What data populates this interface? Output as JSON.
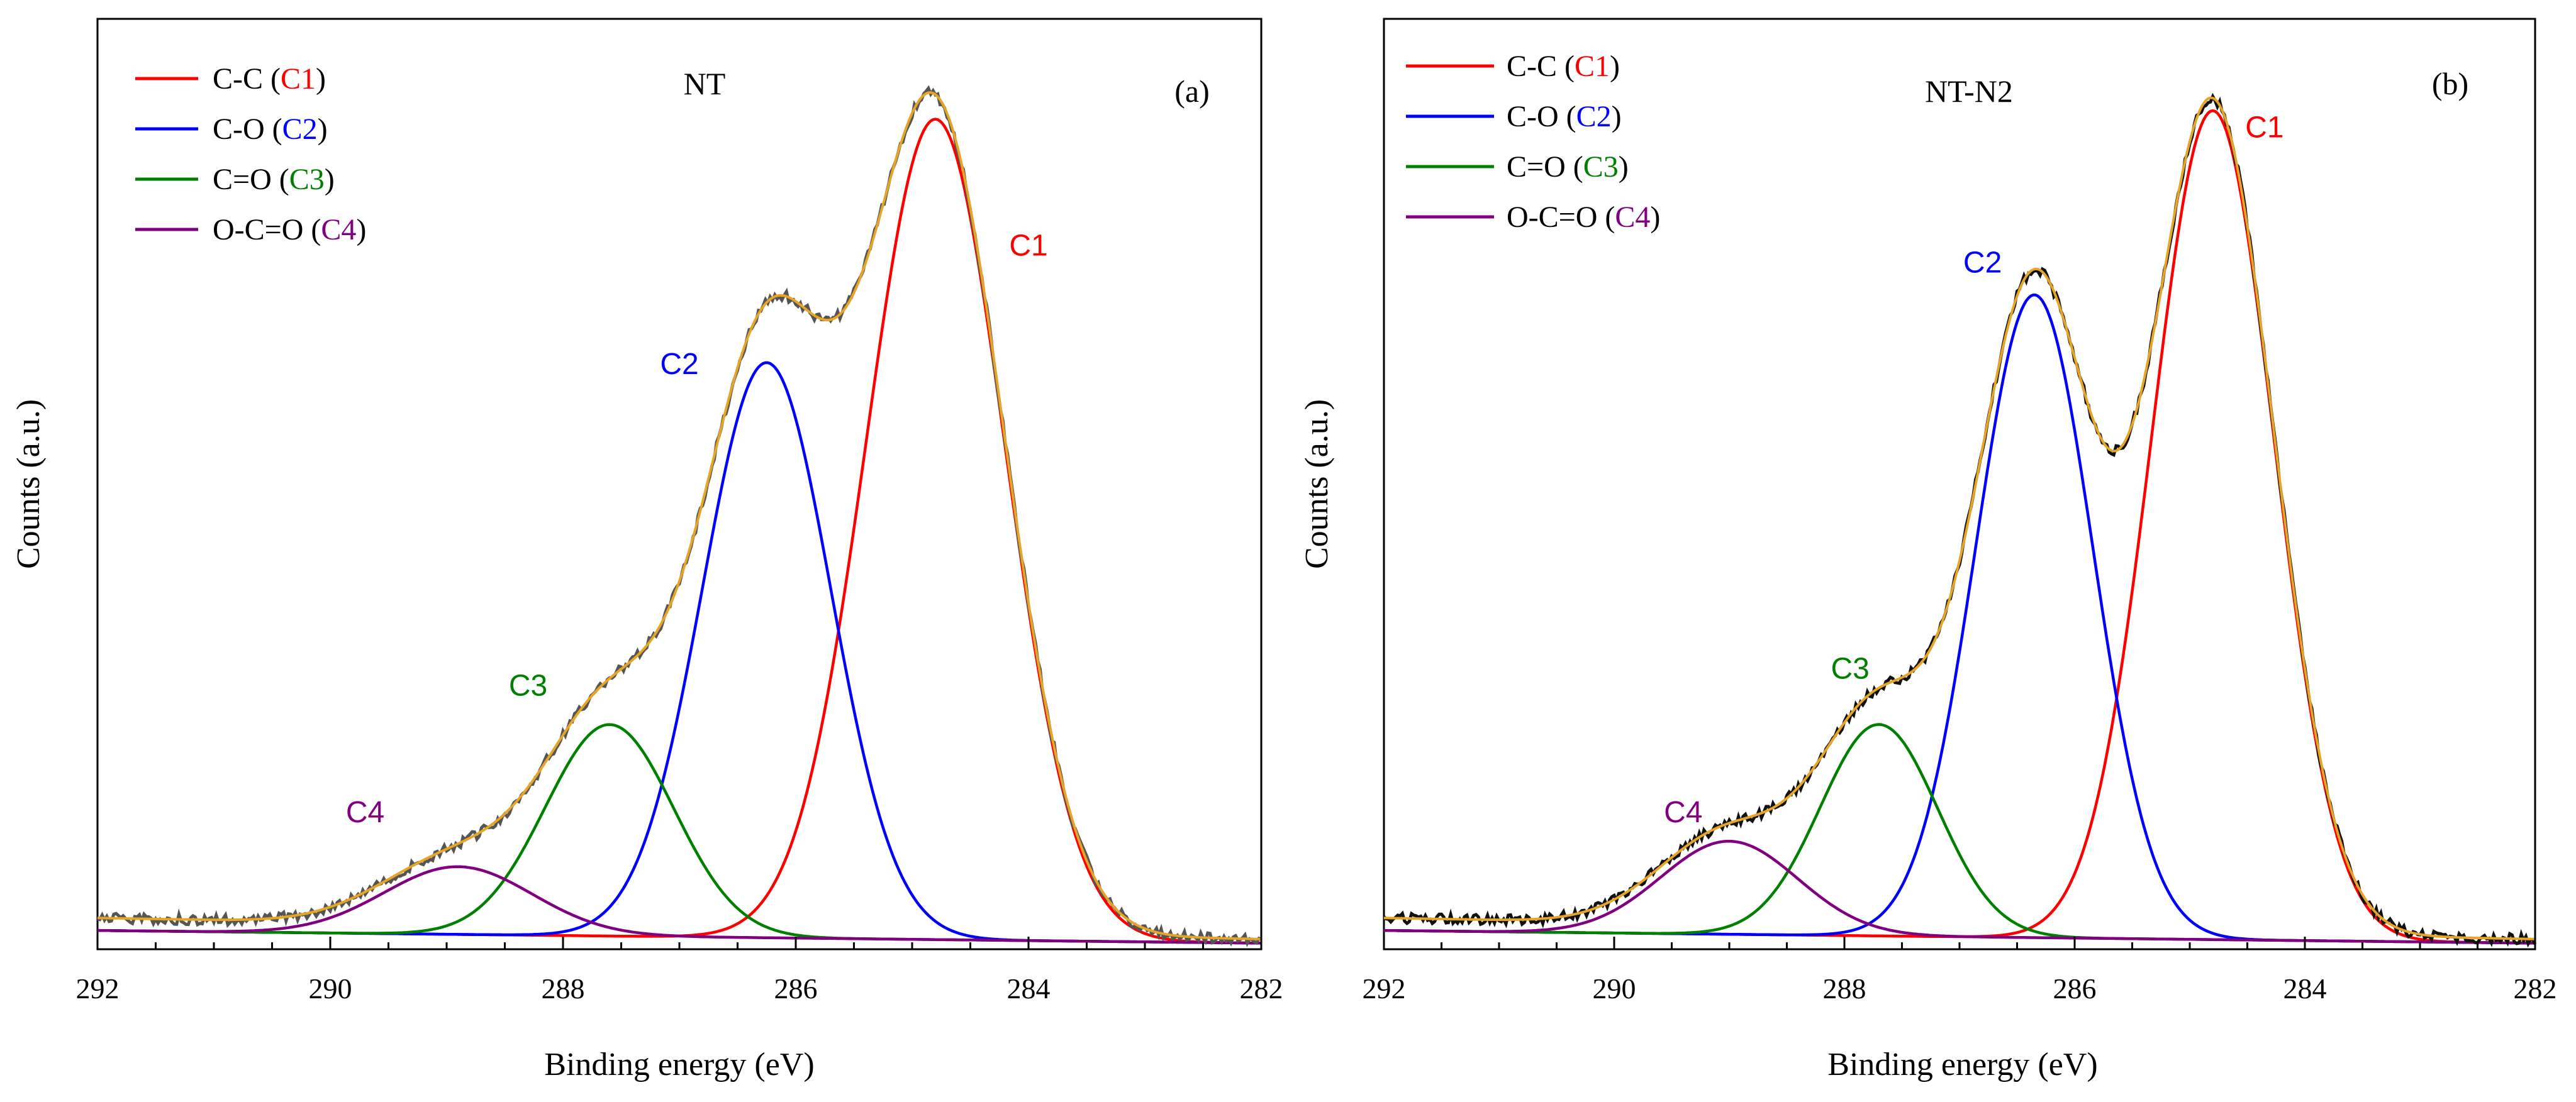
{
  "colors": {
    "c1": "#ff0000",
    "c2": "#0000ff",
    "c3": "#008000",
    "c4": "#800080",
    "envelope": "#e6a526",
    "raw": "#555555",
    "raw_b": "#111111",
    "text": "#000000"
  },
  "chart_data": [
    {
      "type": "line",
      "panel": "(a)",
      "title": "NT",
      "xlabel": "Binding energy (eV)",
      "ylabel": "Counts (a.u.)",
      "xlim": [
        292,
        282
      ],
      "x_reversed": true,
      "ylim": [
        0,
        1.1
      ],
      "y_ticks_shown": false,
      "xticks": [
        292,
        290,
        288,
        286,
        284,
        282
      ],
      "grid": false,
      "legend_position": "top-left",
      "legend": [
        {
          "prefix": "C-C (",
          "code": "C1",
          "suffix": ")",
          "color_key": "c1"
        },
        {
          "prefix": "C-O (",
          "code": "C2",
          "suffix": ")",
          "color_key": "c2"
        },
        {
          "prefix": "C=O (",
          "code": "C3",
          "suffix": ")",
          "color_key": "c3"
        },
        {
          "prefix": "O-C=O (",
          "code": "C4",
          "suffix": ")",
          "color_key": "c4"
        }
      ],
      "peaks": [
        {
          "name": "C1",
          "center": 284.8,
          "height": 0.97,
          "fwhm": 1.4,
          "color_key": "c1"
        },
        {
          "name": "C2",
          "center": 286.25,
          "height": 0.68,
          "fwhm": 1.3,
          "color_key": "c2"
        },
        {
          "name": "C3",
          "center": 287.6,
          "height": 0.25,
          "fwhm": 1.3,
          "color_key": "c3"
        },
        {
          "name": "C4",
          "center": 288.9,
          "height": 0.08,
          "fwhm": 1.5,
          "color_key": "c4"
        }
      ],
      "peak_labels": [
        {
          "text": "C1",
          "x": 284.0,
          "y": 0.82,
          "color_key": "c1"
        },
        {
          "text": "C2",
          "x": 287.0,
          "y": 0.68,
          "color_key": "c2"
        },
        {
          "text": "C3",
          "x": 288.3,
          "y": 0.3,
          "color_key": "c3"
        },
        {
          "text": "C4",
          "x": 289.7,
          "y": 0.15,
          "color_key": "c4"
        }
      ]
    },
    {
      "type": "line",
      "panel": "(b)",
      "title": "NT-N2",
      "xlabel": "Binding energy (eV)",
      "ylabel": "Counts (a.u.)",
      "xlim": [
        292,
        282
      ],
      "x_reversed": true,
      "ylim": [
        0,
        1.1
      ],
      "y_ticks_shown": false,
      "xticks": [
        292,
        290,
        288,
        286,
        284,
        282
      ],
      "grid": false,
      "legend_position": "top-left",
      "legend": [
        {
          "prefix": "C-C (",
          "code": "C1",
          "suffix": ")",
          "color_key": "c1"
        },
        {
          "prefix": "C-O (",
          "code": "C2",
          "suffix": ")",
          "color_key": "c2"
        },
        {
          "prefix": "C=O (",
          "code": "C3",
          "suffix": ")",
          "color_key": "c3"
        },
        {
          "prefix": "O-C=O (",
          "code": "C4",
          "suffix": ")",
          "color_key": "c4"
        }
      ],
      "peaks": [
        {
          "name": "C1",
          "center": 284.8,
          "height": 0.98,
          "fwhm": 1.25,
          "color_key": "c1"
        },
        {
          "name": "C2",
          "center": 286.35,
          "height": 0.76,
          "fwhm": 1.2,
          "color_key": "c2"
        },
        {
          "name": "C3",
          "center": 287.7,
          "height": 0.25,
          "fwhm": 1.2,
          "color_key": "c3"
        },
        {
          "name": "C4",
          "center": 289.0,
          "height": 0.11,
          "fwhm": 1.4,
          "color_key": "c4"
        }
      ],
      "peak_labels": [
        {
          "text": "C1",
          "x": 284.35,
          "y": 0.96,
          "color_key": "c1"
        },
        {
          "text": "C2",
          "x": 286.8,
          "y": 0.8,
          "color_key": "c2"
        },
        {
          "text": "C3",
          "x": 287.95,
          "y": 0.32,
          "color_key": "c3"
        },
        {
          "text": "C4",
          "x": 289.4,
          "y": 0.15,
          "color_key": "c4"
        }
      ]
    }
  ]
}
